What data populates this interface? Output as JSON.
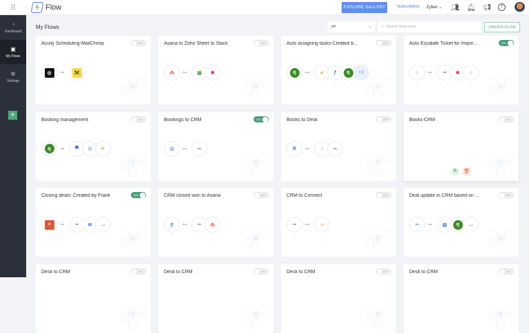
{
  "header": {
    "app_name": "Flow",
    "explore_label": "EXPLORE GALLERY",
    "subscription_label": "Subscription",
    "org_label": "Zylker",
    "org_chevron": "⌄"
  },
  "sidebar": {
    "items": [
      {
        "label": "Dashboard",
        "icon": "gauge-icon",
        "glyph": "◔"
      },
      {
        "label": "My Flows",
        "icon": "flows-icon",
        "glyph": "▣"
      },
      {
        "label": "Settings",
        "icon": "gear-icon",
        "glyph": "⚙"
      }
    ],
    "add_label": "+"
  },
  "main": {
    "title": "My Flows",
    "filter_value": "All",
    "search_placeholder": "Search flows here",
    "create_label": "CREATE FLOW"
  },
  "cards": [
    {
      "title": "Acuity Scheduling-MailChimp",
      "status": "OFF",
      "trigger": "acuity",
      "actions": [
        "mailchimp"
      ]
    },
    {
      "title": "Asana to Zoho Sheet to Slack",
      "status": "OFF",
      "trigger": "asana",
      "actions": [
        "zoho-sheet",
        "slack"
      ]
    },
    {
      "title": "Auto assigning tasks-Created b...",
      "status": "OFF",
      "trigger": "quickbooks",
      "actions": [
        "todo",
        "function",
        "quickbooks",
        "more"
      ],
      "more_label": "+1"
    },
    {
      "title": "Auto Escalate Ticket for Impor...",
      "status": "ON",
      "trigger": "zoho-desk",
      "actions": [
        "zoho-crm",
        "slack",
        "zoho-desk"
      ]
    },
    {
      "title": "Booking management",
      "status": "OFF",
      "trigger": "quickbooks",
      "actions": [
        "chat",
        "projects",
        "todo"
      ]
    },
    {
      "title": "Bookings to CRM",
      "status": "ON",
      "trigger": "bookings",
      "actions": [
        "zoho-crm"
      ]
    },
    {
      "title": "Books to Desk",
      "status": "OFF",
      "trigger": "zoho-books",
      "actions": [
        "zoho-desk",
        "zoho-crm"
      ]
    },
    {
      "title": "Books-CRM",
      "status": "OFF",
      "trigger": null,
      "actions": [],
      "hover_actions": true
    },
    {
      "title": "Closing deals: Created by Frank",
      "status": "ON",
      "trigger": "zoho-notebook",
      "actions": [
        "zoho-crm",
        "mail",
        "cliq"
      ]
    },
    {
      "title": "CRM closed won to Asana",
      "status": "OFF",
      "trigger": "webhook",
      "actions": [
        "zoho-crm",
        "asana"
      ]
    },
    {
      "title": "CRM to Connect",
      "status": "OFF",
      "trigger": "zoho-crm",
      "actions": [
        "zoho-connect"
      ]
    },
    {
      "title": "Deal update in CRM based on ...",
      "status": "OFF",
      "trigger": "zoho-crm",
      "actions": [
        "zoho-forms",
        "quickbooks",
        "cliq"
      ]
    },
    {
      "title": "Desk to CRM",
      "status": "OFF",
      "trigger": null,
      "actions": []
    },
    {
      "title": "Desk to CRM",
      "status": "OFF",
      "trigger": null,
      "actions": []
    },
    {
      "title": "Desk to CRM",
      "status": "OFF",
      "trigger": null,
      "actions": []
    },
    {
      "title": "Desk to CRM",
      "status": "OFF",
      "trigger": null,
      "actions": []
    }
  ],
  "colors": {
    "accent": "#5d8ef0",
    "on": "#4e9d7d",
    "sidebar": "#2c303b",
    "create": "#4fa77a"
  }
}
